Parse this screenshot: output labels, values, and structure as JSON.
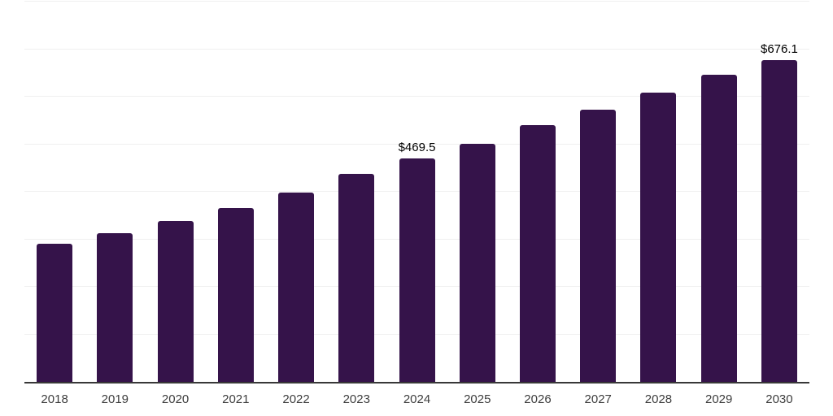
{
  "chart_data": {
    "type": "bar",
    "categories": [
      "2018",
      "2019",
      "2020",
      "2021",
      "2022",
      "2023",
      "2024",
      "2025",
      "2026",
      "2027",
      "2028",
      "2029",
      "2030"
    ],
    "values": [
      290.6,
      312.8,
      338.5,
      365.8,
      398.3,
      437.6,
      469.5,
      500.9,
      540.2,
      572.6,
      608.5,
      646.2,
      676.1
    ],
    "data_labels": [
      "",
      "",
      "",
      "",
      "",
      "",
      "$469.5",
      "",
      "",
      "",
      "",
      "",
      "$676.1"
    ],
    "ylim": [
      0,
      800
    ],
    "y_gridline_interval": 100,
    "grid_visible": true,
    "y_axis_tick_labels_visible": false,
    "legend_position": "none",
    "bar_color": "#35134a",
    "axis_line_color": "#383838",
    "gridline_color": "#f0f0f0",
    "tick_label_color": "#3d3d3d",
    "data_label_color": "#000000",
    "background_color": "#ffffff"
  }
}
